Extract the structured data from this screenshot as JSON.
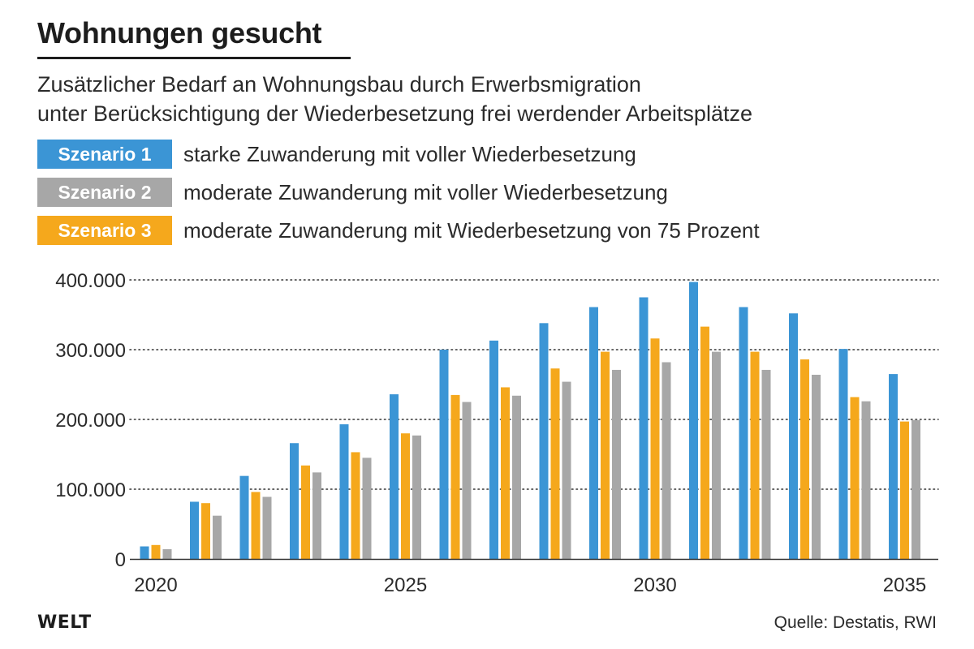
{
  "header": {
    "title": "Wohnungen gesucht",
    "subtitle_line1": "Zusätzlicher Bedarf an Wohnungsbau durch Erwerbsmigration",
    "subtitle_line2": "unter Berücksichtigung der Wiederbesetzung frei werdender Arbeitsplätze"
  },
  "legend": [
    {
      "badge": "Szenario 1",
      "text": "starke Zuwanderung mit voller Wiederbesetzung",
      "color": "#3b95d5"
    },
    {
      "badge": "Szenario 2",
      "text": "moderate Zuwanderung mit voller Wiederbesetzung",
      "color": "#a7a7a7"
    },
    {
      "badge": "Szenario 3",
      "text": "moderate Zuwanderung mit Wiederbesetzung von 75 Prozent",
      "color": "#f5a81c"
    }
  ],
  "footer": {
    "brand": "WELT",
    "source": "Quelle: Destatis, RWI"
  },
  "chart_data": {
    "type": "bar",
    "title": "Wohnungen gesucht",
    "xlabel": "",
    "ylabel": "",
    "ylim": [
      0,
      400000
    ],
    "y_ticks": [
      0,
      100000,
      200000,
      300000,
      400000
    ],
    "y_tick_labels": [
      "0",
      "100.000",
      "200.000",
      "300.000",
      "400.000"
    ],
    "x_tick_labels": [
      "2020",
      "2025",
      "2030",
      "2035"
    ],
    "grid": "horizontal dotted",
    "legend_placement": "top",
    "categories": [
      2020,
      2021,
      2022,
      2023,
      2024,
      2025,
      2026,
      2027,
      2028,
      2029,
      2030,
      2031,
      2032,
      2033,
      2034,
      2035
    ],
    "bar_order": [
      "Szenario 1",
      "Szenario 3",
      "Szenario 2"
    ],
    "series": [
      {
        "name": "Szenario 1",
        "color": "#3b95d5",
        "values": [
          18000,
          82000,
          119000,
          166000,
          193000,
          236000,
          300000,
          313000,
          338000,
          361000,
          375000,
          397000,
          361000,
          352000,
          301000,
          265000
        ]
      },
      {
        "name": "Szenario 2",
        "color": "#a7a7a7",
        "values": [
          14000,
          62000,
          89000,
          124000,
          145000,
          177000,
          225000,
          234000,
          254000,
          271000,
          282000,
          297000,
          271000,
          264000,
          226000,
          199000
        ]
      },
      {
        "name": "Szenario 3",
        "color": "#f5a81c",
        "values": [
          20000,
          80000,
          96000,
          134000,
          153000,
          180000,
          235000,
          246000,
          273000,
          297000,
          316000,
          333000,
          297000,
          286000,
          232000,
          197000
        ]
      }
    ]
  }
}
